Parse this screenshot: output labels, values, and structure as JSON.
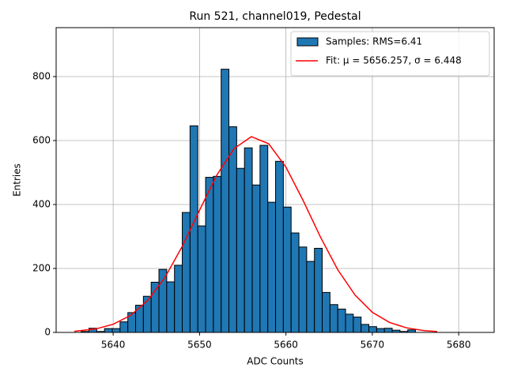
{
  "chart_data": {
    "type": "histogram",
    "title": "Run 521, channel019, Pedestal",
    "xlabel": "ADC Counts",
    "ylabel": "Entries",
    "xlim": [
      5633.4,
      5684.1
    ],
    "xticks": [
      5640,
      5650,
      5660,
      5670,
      5680
    ],
    "ylim": [
      0,
      953
    ],
    "yticks": [
      0,
      200,
      400,
      600,
      800
    ],
    "grid": true,
    "legend": "upper right",
    "series": [
      {
        "name": "Samples: RMS=6.41",
        "type": "histogram",
        "color": "#1f77b4",
        "bins": [
          5636.3,
          5637.2,
          5638.1,
          5639.0,
          5639.9,
          5640.8,
          5641.7,
          5642.6,
          5643.5,
          5644.4,
          5645.3,
          5646.2,
          5647.1,
          5648.0,
          5648.9,
          5649.8,
          5650.7,
          5651.6,
          5652.5,
          5653.4,
          5654.3,
          5655.2,
          5656.1,
          5657.0,
          5657.9,
          5658.8,
          5659.7,
          5660.6,
          5661.5,
          5662.4,
          5663.3,
          5664.2,
          5665.1,
          5666.0,
          5666.9,
          5667.8,
          5668.7,
          5669.6,
          5670.5,
          5671.4,
          5672.3,
          5673.2,
          5674.1,
          5675.0
        ],
        "values": [
          3,
          13,
          3,
          12,
          12,
          33,
          62,
          85,
          113,
          157,
          197,
          158,
          210,
          375,
          646,
          333,
          485,
          488,
          823,
          643,
          513,
          577,
          461,
          585,
          407,
          535,
          392,
          311,
          267,
          222,
          263,
          125,
          87,
          73,
          57,
          48,
          25,
          18,
          12,
          13,
          7,
          3,
          8
        ]
      },
      {
        "name": "Fit: μ = 5656.257, σ = 6.448",
        "type": "line",
        "color": "#ff0000",
        "x": [
          5635.5,
          5638,
          5640,
          5642,
          5644,
          5646,
          5648,
          5650,
          5652,
          5654,
          5656,
          5658,
          5660,
          5662,
          5664,
          5666,
          5668,
          5670,
          5672,
          5674,
          5676,
          5677.5
        ],
        "values": [
          3.4,
          11,
          25.5,
          53,
          100,
          172,
          269,
          382,
          492,
          575,
          612,
          590,
          517,
          412,
          298,
          196,
          117,
          63,
          31,
          14,
          5.6,
          2.7
        ]
      }
    ]
  }
}
